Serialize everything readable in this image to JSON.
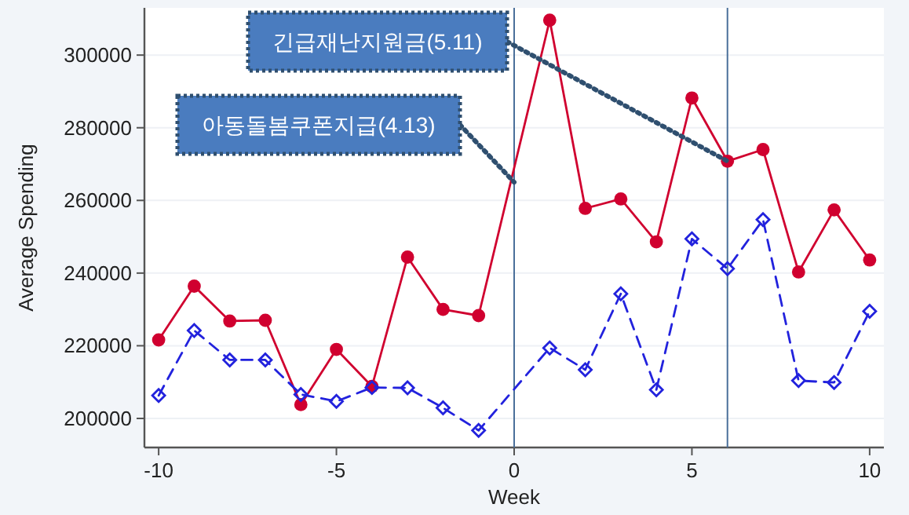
{
  "chart_data": {
    "type": "line",
    "xlabel": "Week",
    "ylabel": "Average Spending",
    "xlim": [
      -10.4,
      10.4
    ],
    "xticks": [
      -10,
      -5,
      0,
      5,
      10
    ],
    "ylim": [
      192000,
      313000
    ],
    "yticks": [
      200000,
      220000,
      240000,
      260000,
      280000,
      300000
    ],
    "grid": "y",
    "series": [
      {
        "color": "#d0002f",
        "marker": "circle",
        "line_style": "solid",
        "x": [
          -10,
          -9,
          -8,
          -7,
          -6,
          -5,
          -4,
          -3,
          -2,
          -1,
          1,
          2,
          3,
          4,
          5,
          6,
          7,
          8,
          9,
          10
        ],
        "values": [
          221600,
          236400,
          226800,
          227000,
          203800,
          219000,
          208800,
          244400,
          230000,
          228300,
          309600,
          257800,
          260400,
          248600,
          288200,
          270800,
          274000,
          240300,
          257400,
          243600
        ]
      },
      {
        "color": "#2222dd",
        "marker": "diamond",
        "line_style": "dashed",
        "x": [
          -10,
          -9,
          -8,
          -7,
          -6,
          -5,
          -4,
          -3,
          -2,
          -1,
          1,
          2,
          3,
          4,
          5,
          6,
          7,
          8,
          9,
          10
        ],
        "values": [
          206300,
          224200,
          216100,
          216100,
          206600,
          204700,
          208500,
          208400,
          202900,
          196700,
          219400,
          213400,
          234300,
          207900,
          249400,
          241200,
          254700,
          210400,
          209900,
          229500
        ]
      }
    ],
    "ref_lines": [
      {
        "axis": "x",
        "value": 0,
        "color": "#4a6f9a"
      },
      {
        "axis": "x",
        "value": 6,
        "color": "#4a6f9a"
      }
    ],
    "annotations": [
      {
        "text": "긴급재난지원금(5.11)",
        "x": 6,
        "y": 270800
      },
      {
        "text": "아동돌봄쿠폰지급(4.13)",
        "x": 0,
        "y": 265000
      }
    ]
  }
}
